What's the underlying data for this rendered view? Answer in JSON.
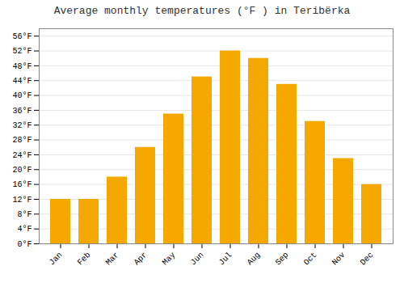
{
  "chart_data": {
    "type": "bar",
    "title": "Average monthly temperatures (°F ) in Teribërka",
    "categories": [
      "Jan",
      "Feb",
      "Mar",
      "Apr",
      "May",
      "Jun",
      "Jul",
      "Aug",
      "Sep",
      "Oct",
      "Nov",
      "Dec"
    ],
    "values": [
      12,
      12,
      18,
      26,
      35,
      45,
      52,
      50,
      43,
      33,
      23,
      16
    ],
    "color": "#F5A800",
    "ylim": [
      0,
      58
    ],
    "yticks": [
      {
        "value": 0,
        "label": "0°F"
      },
      {
        "value": 4,
        "label": "4°F"
      },
      {
        "value": 8,
        "label": "8°F"
      },
      {
        "value": 12,
        "label": "12°F"
      },
      {
        "value": 16,
        "label": "16°F"
      },
      {
        "value": 20,
        "label": "20°F"
      },
      {
        "value": 24,
        "label": "24°F"
      },
      {
        "value": 28,
        "label": "28°F"
      },
      {
        "value": 32,
        "label": "32°F"
      },
      {
        "value": 36,
        "label": "36°F"
      },
      {
        "value": 40,
        "label": "40°F"
      },
      {
        "value": 44,
        "label": "44°F"
      },
      {
        "value": 48,
        "label": "48°F"
      },
      {
        "value": 52,
        "label": "52°F"
      },
      {
        "value": 56,
        "label": "56°F"
      }
    ],
    "grid": true
  }
}
